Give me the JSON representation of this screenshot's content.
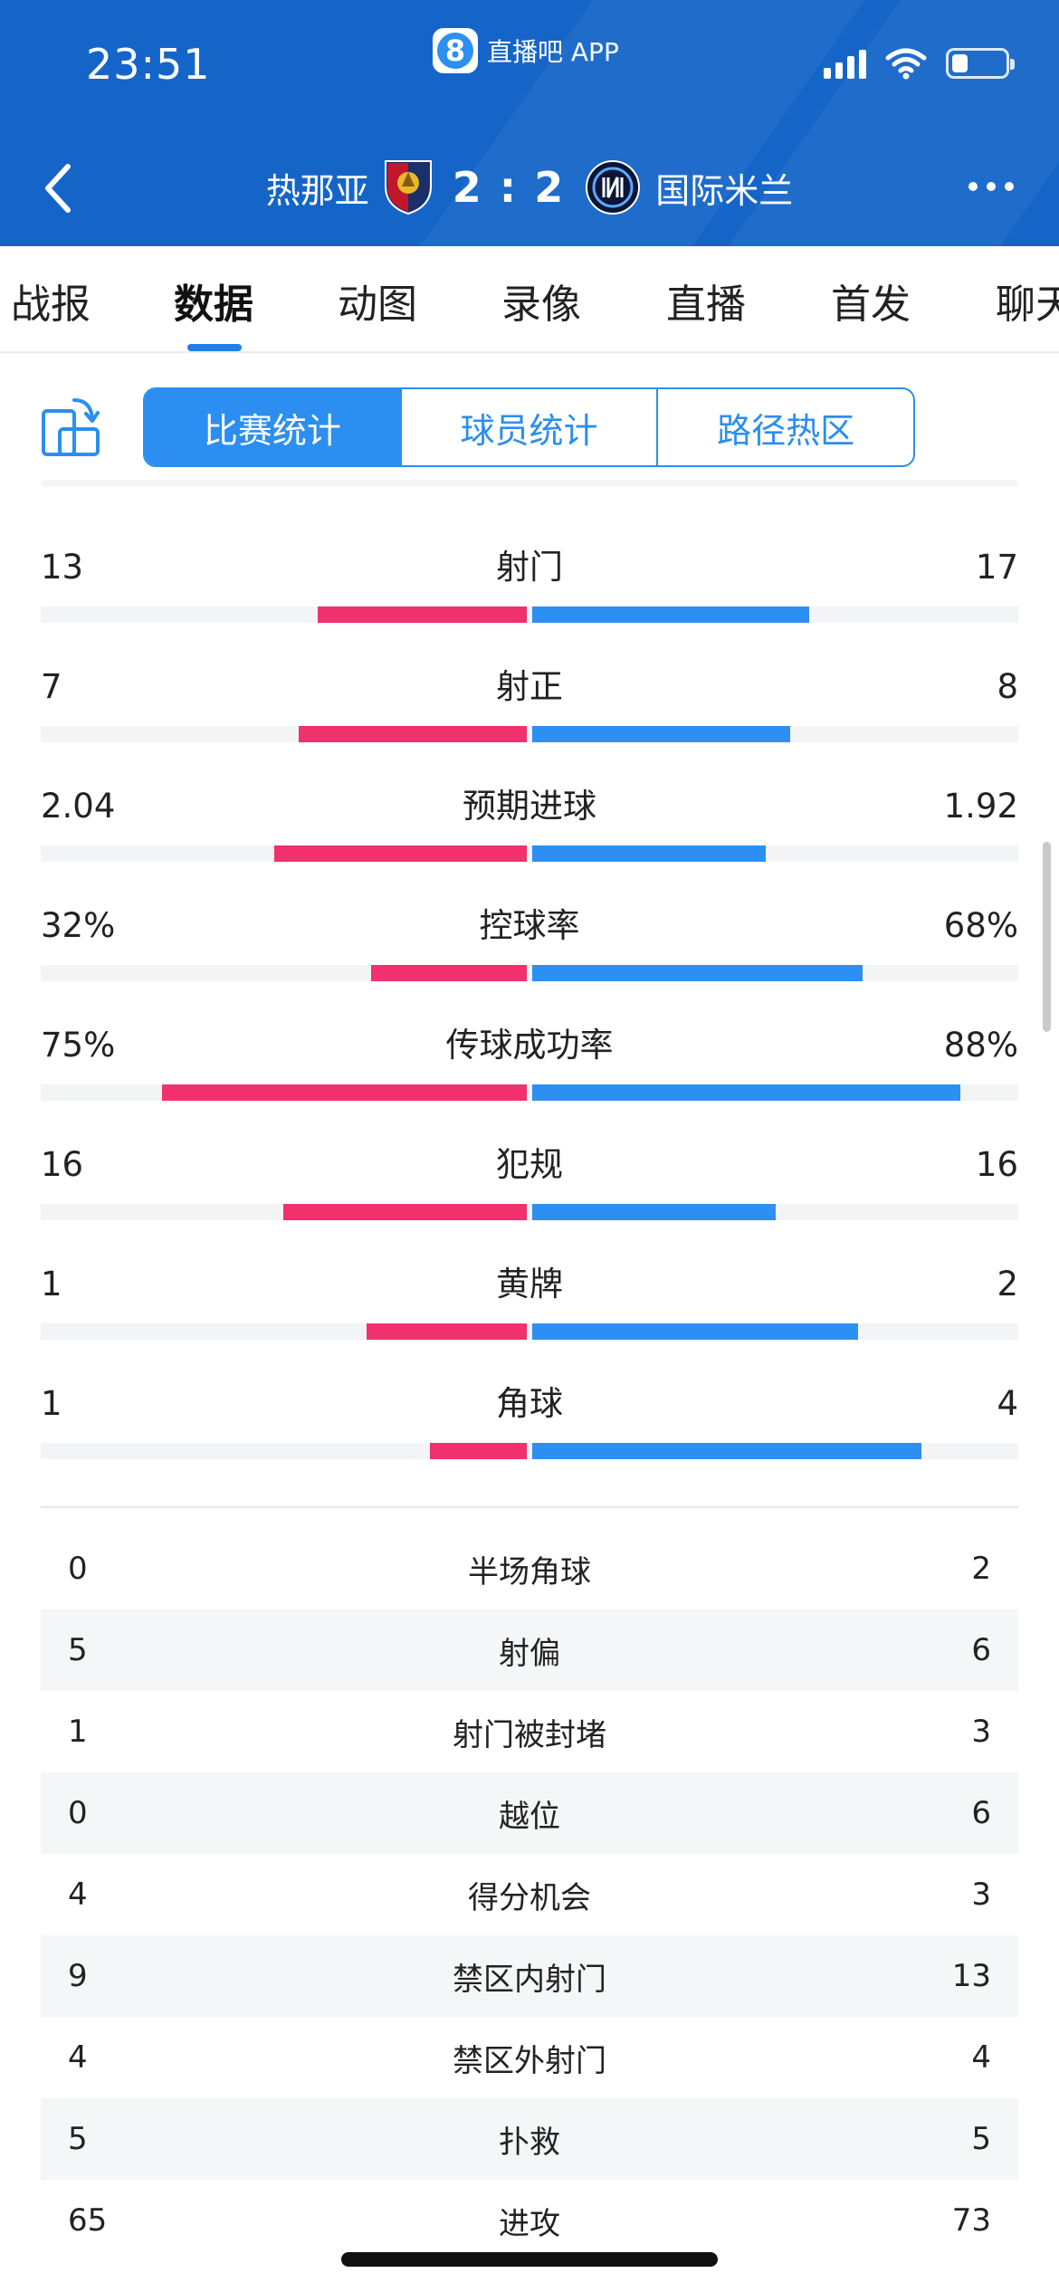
{
  "status_bar": {
    "time": "23:51",
    "app_badge_icon": "8",
    "app_name": "直播吧 APP"
  },
  "match": {
    "home_team": "热那亚",
    "score": "2 : 2",
    "away_team": "国际米兰"
  },
  "tabs": [
    {
      "label": "战报"
    },
    {
      "label": "数据"
    },
    {
      "label": "动图"
    },
    {
      "label": "录像"
    },
    {
      "label": "直播"
    },
    {
      "label": "首发"
    },
    {
      "label": "聊天"
    }
  ],
  "active_tab": "数据",
  "segments": [
    "比赛统计",
    "球员统计",
    "路径热区"
  ],
  "active_segment": "比赛统计",
  "colors": {
    "header_bg": "#1565c9",
    "home_bar": "#f1306e",
    "away_bar": "#2e8ff2",
    "accent": "#2b8ef0"
  },
  "bar_stats": [
    {
      "label": "射门",
      "home": "13",
      "away": "17",
      "home_share": 0.43,
      "away_share": 0.57
    },
    {
      "label": "射正",
      "home": "7",
      "away": "8",
      "home_share": 0.47,
      "away_share": 0.53
    },
    {
      "label": "预期进球",
      "home": "2.04",
      "away": "1.92",
      "home_share": 0.52,
      "away_share": 0.48
    },
    {
      "label": "控球率",
      "home": "32%",
      "away": "68%",
      "home_share": 0.32,
      "away_share": 0.68
    },
    {
      "label": "传球成功率",
      "home": "75%",
      "away": "88%",
      "home_share": 0.75,
      "away_share": 0.88
    },
    {
      "label": "犯规",
      "home": "16",
      "away": "16",
      "home_share": 0.5,
      "away_share": 0.5
    },
    {
      "label": "黄牌",
      "home": "1",
      "away": "2",
      "home_share": 0.33,
      "away_share": 0.67
    },
    {
      "label": "角球",
      "home": "1",
      "away": "4",
      "home_share": 0.2,
      "away_share": 0.8
    }
  ],
  "table_stats": [
    {
      "label": "半场角球",
      "home": "0",
      "away": "2"
    },
    {
      "label": "射偏",
      "home": "5",
      "away": "6"
    },
    {
      "label": "射门被封堵",
      "home": "1",
      "away": "3"
    },
    {
      "label": "越位",
      "home": "0",
      "away": "6"
    },
    {
      "label": "得分机会",
      "home": "4",
      "away": "3"
    },
    {
      "label": "禁区内射门",
      "home": "9",
      "away": "13"
    },
    {
      "label": "禁区外射门",
      "home": "4",
      "away": "4"
    },
    {
      "label": "扑救",
      "home": "5",
      "away": "5"
    },
    {
      "label": "进攻",
      "home": "65",
      "away": "73"
    }
  ],
  "icons": {
    "back": "chevron-left-icon",
    "more": "more-dots-icon",
    "rotate": "rotate-screen-icon",
    "signal": "cellular-signal-icon",
    "wifi": "wifi-icon",
    "battery": "battery-icon"
  },
  "battery_level": 0.3
}
